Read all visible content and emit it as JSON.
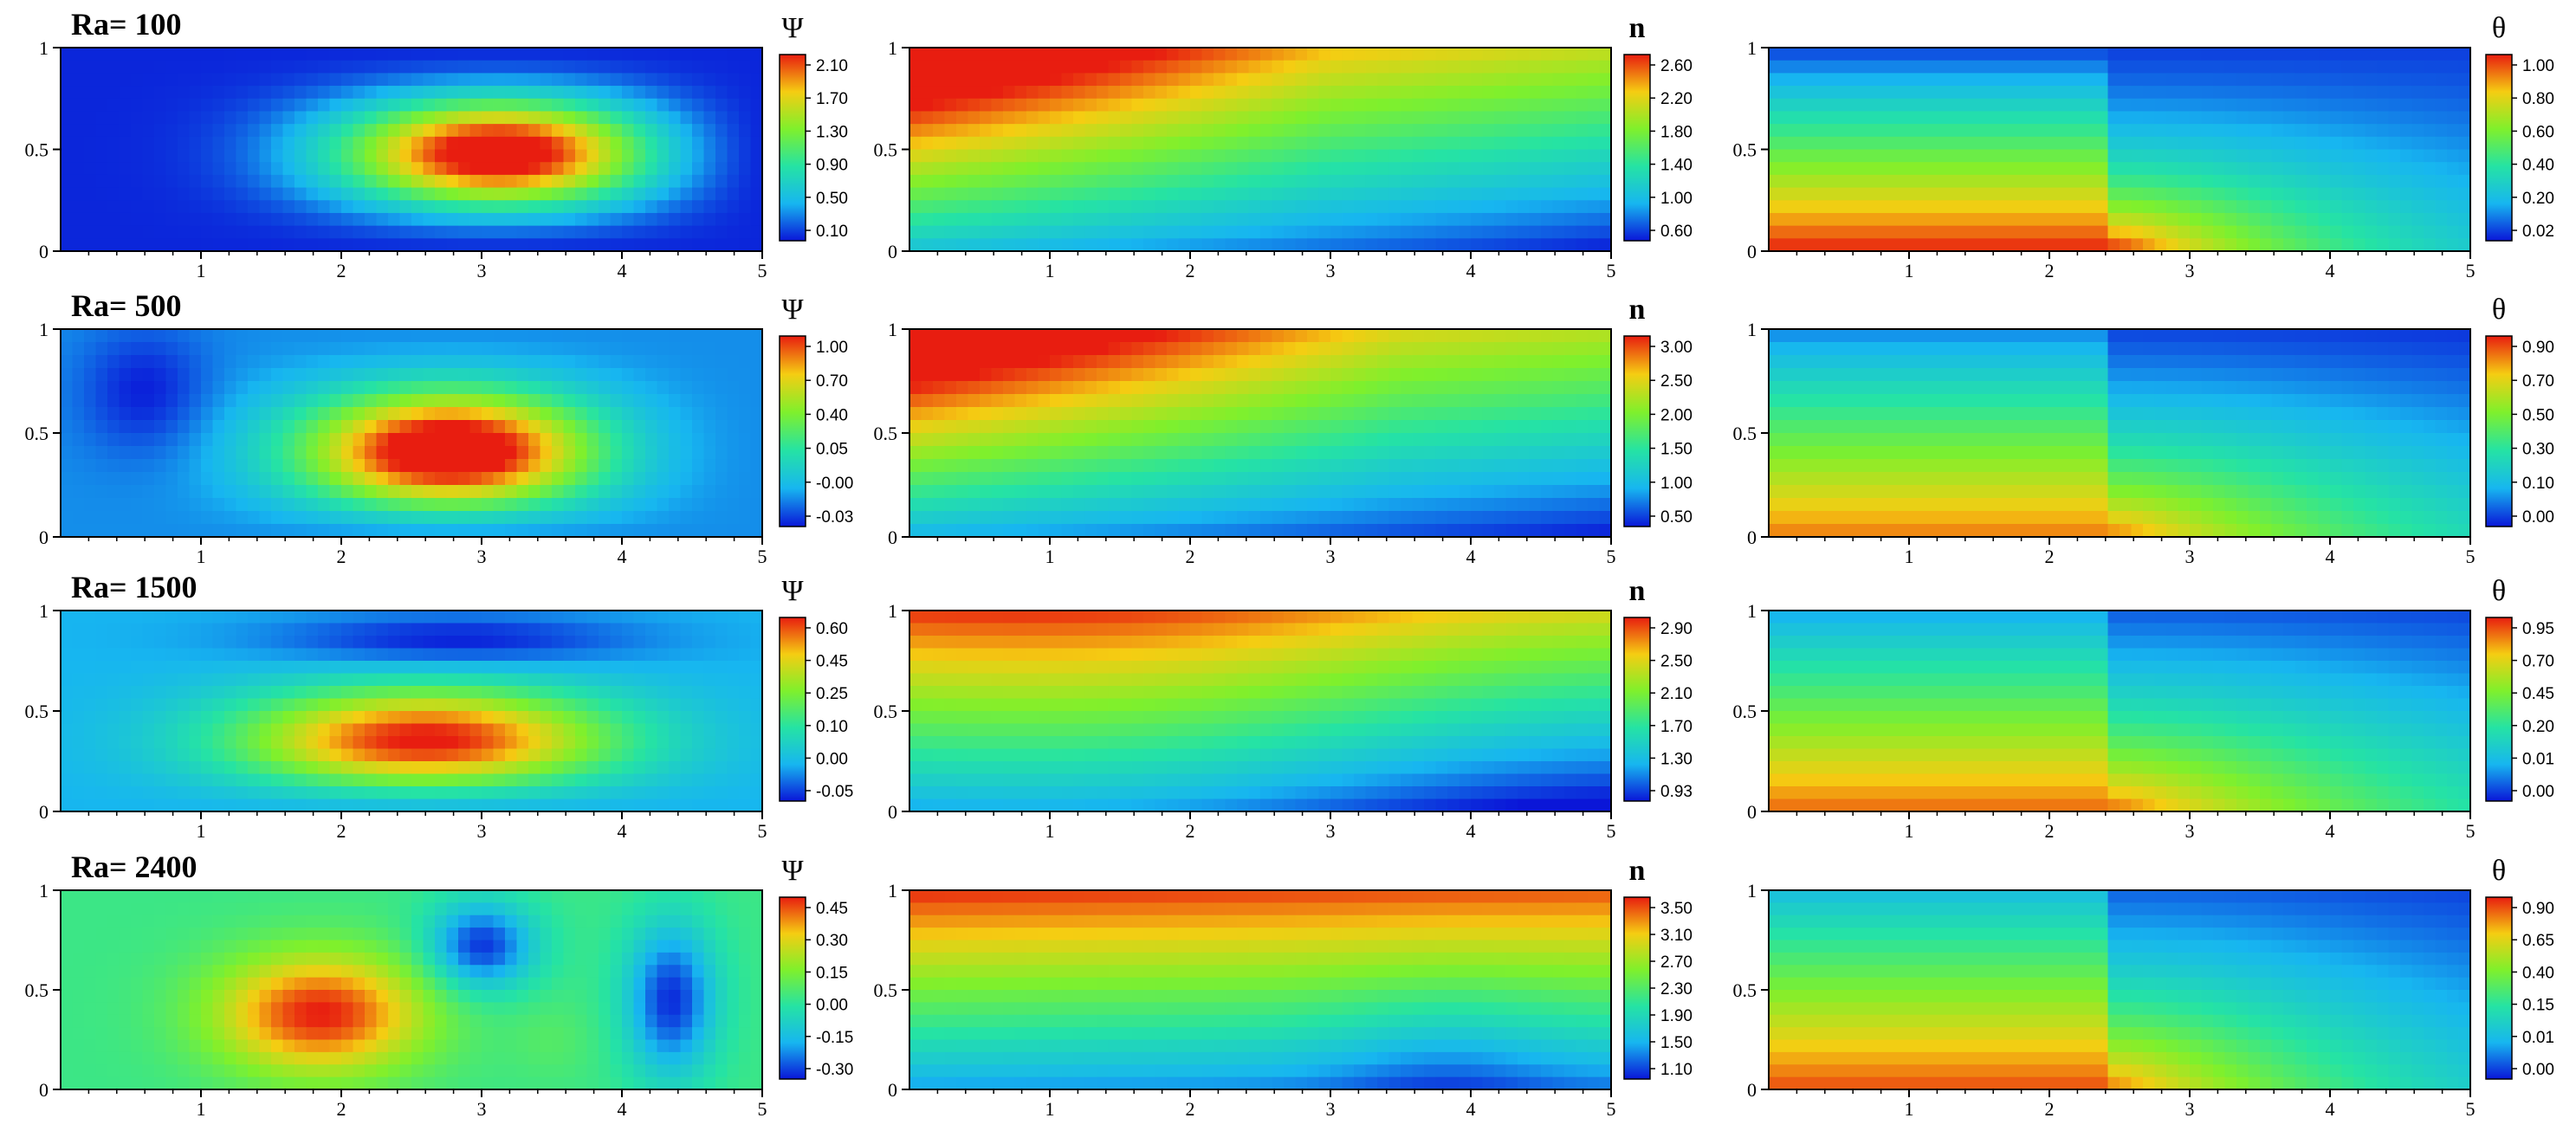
{
  "figure": {
    "rows": [
      {
        "label": "Ra= 100"
      },
      {
        "label": "Ra= 500"
      },
      {
        "label": "Ra= 1500"
      },
      {
        "label": "Ra= 2400"
      }
    ],
    "variables": [
      {
        "key": "psi",
        "symbol": "Ψ"
      },
      {
        "key": "n",
        "symbol": "n"
      },
      {
        "key": "theta",
        "symbol": "θ"
      }
    ]
  },
  "chart_data": [
    {
      "type": "heatmap",
      "row": 0,
      "variable": "Ψ",
      "title": "Ra= 100",
      "xlim": [
        0,
        5
      ],
      "ylim": [
        0,
        1
      ],
      "x_ticks": [
        "1",
        "2",
        "3",
        "4",
        "5"
      ],
      "y_ticks": [
        "0",
        "0.5",
        "1"
      ],
      "colorbar": [
        "2.10",
        "1.70",
        "1.30",
        "0.90",
        "0.50",
        "0.10"
      ],
      "features": [
        {
          "kind": "max",
          "x": 3.35,
          "y": 0.47,
          "value": 2.3
        }
      ]
    },
    {
      "type": "heatmap",
      "row": 0,
      "variable": "n",
      "xlim": [
        0,
        5
      ],
      "ylim": [
        0,
        1
      ],
      "x_ticks": [
        "1",
        "2",
        "3",
        "4",
        "5"
      ],
      "y_ticks": [
        "0",
        "0.5",
        "1"
      ],
      "colorbar": [
        "2.60",
        "2.20",
        "1.80",
        "1.40",
        "1.00",
        "0.60"
      ]
    },
    {
      "type": "heatmap",
      "row": 0,
      "variable": "θ",
      "xlim": [
        0,
        5
      ],
      "ylim": [
        0,
        1
      ],
      "x_ticks": [
        "1",
        "2",
        "3",
        "4",
        "5"
      ],
      "y_ticks": [
        "0",
        "0.5",
        "1"
      ],
      "colorbar": [
        "1.00",
        "0.80",
        "0.60",
        "0.40",
        "0.20",
        "0.02"
      ]
    },
    {
      "type": "heatmap",
      "row": 1,
      "variable": "Ψ",
      "title": "Ra= 500",
      "xlim": [
        0,
        5
      ],
      "ylim": [
        0,
        1
      ],
      "x_ticks": [
        "1",
        "2",
        "3",
        "4",
        "5"
      ],
      "y_ticks": [
        "0",
        "0.5",
        "1"
      ],
      "colorbar": [
        "1.00",
        "0.70",
        "0.40",
        "0.05",
        "-0.00",
        "-0.03"
      ],
      "features": [
        {
          "kind": "max",
          "x": 2.85,
          "y": 0.35,
          "value": 1.0
        },
        {
          "kind": "min",
          "x": 0.6,
          "y": 0.7,
          "value": -0.03
        }
      ]
    },
    {
      "type": "heatmap",
      "row": 1,
      "variable": "n",
      "xlim": [
        0,
        5
      ],
      "ylim": [
        0,
        1
      ],
      "x_ticks": [
        "1",
        "2",
        "3",
        "4",
        "5"
      ],
      "y_ticks": [
        "0",
        "0.5",
        "1"
      ],
      "colorbar": [
        "3.00",
        "2.50",
        "2.00",
        "1.50",
        "1.00",
        "0.50"
      ]
    },
    {
      "type": "heatmap",
      "row": 1,
      "variable": "θ",
      "xlim": [
        0,
        5
      ],
      "ylim": [
        0,
        1
      ],
      "x_ticks": [
        "1",
        "2",
        "3",
        "4",
        "5"
      ],
      "y_ticks": [
        "0",
        "0.5",
        "1"
      ],
      "colorbar": [
        "0.90",
        "0.70",
        "0.50",
        "0.30",
        "0.10",
        "0.00"
      ]
    },
    {
      "type": "heatmap",
      "row": 2,
      "variable": "Ψ",
      "title": "Ra= 1500",
      "xlim": [
        0,
        5
      ],
      "ylim": [
        0,
        1
      ],
      "x_ticks": [
        "1",
        "2",
        "3",
        "4",
        "5"
      ],
      "y_ticks": [
        "0",
        "0.5",
        "1"
      ],
      "colorbar": [
        "0.60",
        "0.45",
        "0.25",
        "0.10",
        "0.00",
        "-0.05"
      ],
      "features": [
        {
          "kind": "max",
          "x": 2.6,
          "y": 0.28,
          "value": 0.62
        },
        {
          "kind": "min",
          "x": 2.8,
          "y": 0.85,
          "value": -0.05
        }
      ]
    },
    {
      "type": "heatmap",
      "row": 2,
      "variable": "n",
      "xlim": [
        0,
        5
      ],
      "ylim": [
        0,
        1
      ],
      "x_ticks": [
        "1",
        "2",
        "3",
        "4",
        "5"
      ],
      "y_ticks": [
        "0",
        "0.5",
        "1"
      ],
      "colorbar": [
        "2.90",
        "2.50",
        "2.10",
        "1.70",
        "1.30",
        "0.93"
      ]
    },
    {
      "type": "heatmap",
      "row": 2,
      "variable": "θ",
      "xlim": [
        0,
        5
      ],
      "ylim": [
        0,
        1
      ],
      "x_ticks": [
        "1",
        "2",
        "3",
        "4",
        "5"
      ],
      "y_ticks": [
        "0",
        "0.5",
        "1"
      ],
      "colorbar": [
        "0.95",
        "0.70",
        "0.45",
        "0.20",
        "0.01",
        "0.00"
      ]
    },
    {
      "type": "heatmap",
      "row": 3,
      "variable": "Ψ",
      "title": "Ra= 2400",
      "xlim": [
        0,
        5
      ],
      "ylim": [
        0,
        1
      ],
      "x_ticks": [
        "1",
        "2",
        "3",
        "4",
        "5"
      ],
      "y_ticks": [
        "0",
        "0.5",
        "1"
      ],
      "colorbar": [
        "0.45",
        "0.30",
        "0.15",
        "0.00",
        "-0.15",
        "-0.30"
      ],
      "features": [
        {
          "kind": "max",
          "x": 1.85,
          "y": 0.38,
          "value": 0.5
        },
        {
          "kind": "min",
          "x": 3.0,
          "y": 0.72,
          "value": -0.3
        },
        {
          "kind": "min",
          "x": 4.35,
          "y": 0.45,
          "value": -0.3
        }
      ]
    },
    {
      "type": "heatmap",
      "row": 3,
      "variable": "n",
      "xlim": [
        0,
        5
      ],
      "ylim": [
        0,
        1
      ],
      "x_ticks": [
        "1",
        "2",
        "3",
        "4",
        "5"
      ],
      "y_ticks": [
        "0",
        "0.5",
        "1"
      ],
      "colorbar": [
        "3.50",
        "3.10",
        "2.70",
        "2.30",
        "1.90",
        "1.50",
        "1.10"
      ]
    },
    {
      "type": "heatmap",
      "row": 3,
      "variable": "θ",
      "xlim": [
        0,
        5
      ],
      "ylim": [
        0,
        1
      ],
      "x_ticks": [
        "1",
        "2",
        "3",
        "4",
        "5"
      ],
      "y_ticks": [
        "0",
        "0.5",
        "1"
      ],
      "colorbar": [
        "0.90",
        "0.65",
        "0.40",
        "0.15",
        "0.01",
        "0.00"
      ]
    }
  ]
}
